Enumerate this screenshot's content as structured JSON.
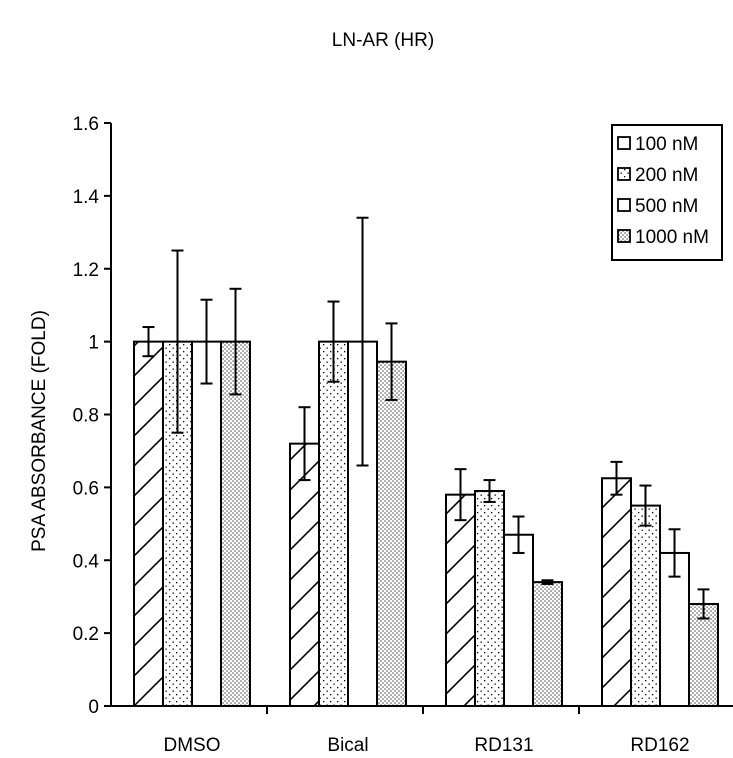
{
  "chart_data": {
    "type": "bar",
    "title": "LN-AR (HR)",
    "xlabel": "",
    "ylabel": "PSA ABSORBANCE (FOLD)",
    "ylim": [
      0,
      1.6
    ],
    "yticks": [
      "0",
      "0.2",
      "0.4",
      "0.6",
      "0.8",
      "1",
      "1.2",
      "1.4",
      "1.6"
    ],
    "categories": [
      "DMSO",
      "Bical",
      "RD131",
      "RD162"
    ],
    "grid": false,
    "legend_position": "top-right",
    "series": [
      {
        "name": "100 nM",
        "pattern": "diagonal-hatch",
        "values": [
          1.0,
          0.72,
          0.58,
          0.625
        ],
        "errors": [
          0.04,
          0.1,
          0.07,
          0.045
        ]
      },
      {
        "name": "200 nM",
        "pattern": "sparse-dots",
        "values": [
          1.0,
          1.0,
          0.59,
          0.55
        ],
        "errors": [
          0.25,
          0.11,
          0.03,
          0.055
        ]
      },
      {
        "name": "500 nM",
        "pattern": "none",
        "values": [
          1.0,
          1.0,
          0.47,
          0.42
        ],
        "errors": [
          0.115,
          0.34,
          0.05,
          0.065
        ]
      },
      {
        "name": "1000 nM",
        "pattern": "dense-dots",
        "values": [
          1.0,
          0.945,
          0.34,
          0.28
        ],
        "errors": [
          0.145,
          0.105,
          0.005,
          0.04
        ]
      }
    ]
  }
}
